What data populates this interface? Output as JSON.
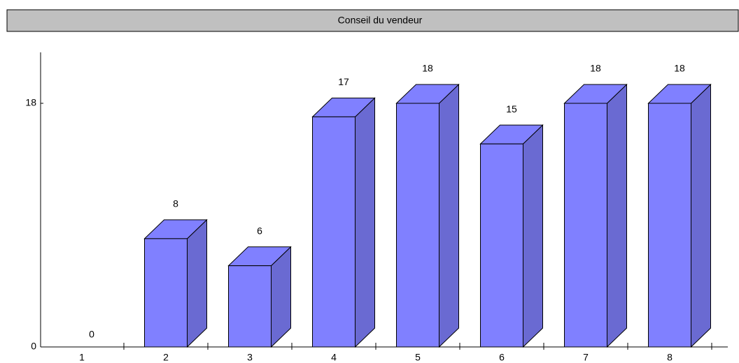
{
  "chart_data": {
    "type": "bar3d",
    "title": "Conseil du vendeur",
    "categories": [
      "1",
      "2",
      "3",
      "4",
      "5",
      "6",
      "7",
      "8"
    ],
    "values": [
      0,
      8,
      6,
      17,
      18,
      15,
      18,
      18
    ],
    "color": "#8080ff",
    "side_color": "#6a6ad2",
    "ylim": [
      0,
      18
    ],
    "yticks": [
      0,
      18
    ]
  }
}
